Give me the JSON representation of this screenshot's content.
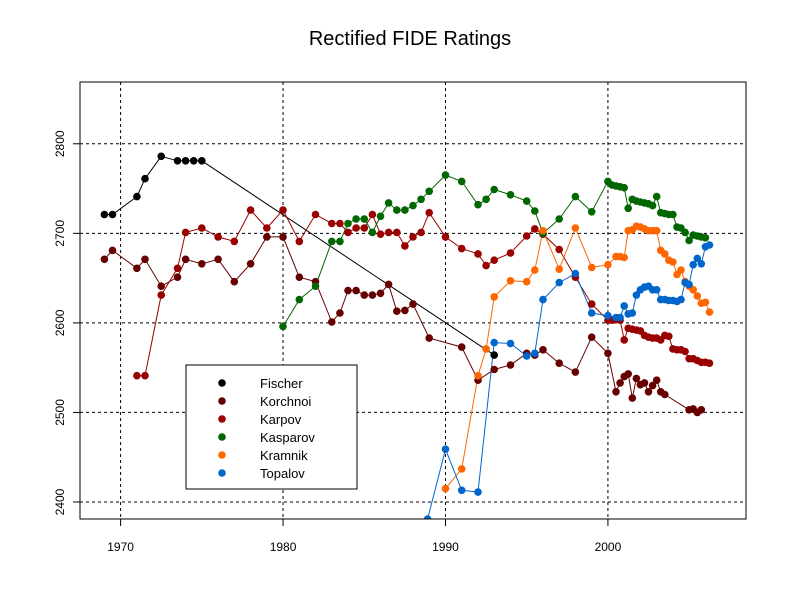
{
  "chart_data": {
    "type": "line",
    "title": "Rectified FIDE Ratings",
    "xlabel": "",
    "ylabel": "",
    "xlim": [
      1967.5,
      2008.5
    ],
    "ylim": [
      2381,
      2869
    ],
    "x_ticks": [
      1970,
      1980,
      1990,
      2000
    ],
    "y_ticks": [
      2400,
      2500,
      2600,
      2700,
      2800
    ],
    "grid": "dashed, at ticks",
    "legend_position": "bottom-left",
    "series": [
      {
        "name": "Fischer",
        "color": "#000000",
        "points": [
          [
            1969.0,
            2721
          ],
          [
            1969.5,
            2721
          ],
          [
            1971.0,
            2741
          ],
          [
            1971.5,
            2761
          ],
          [
            1972.5,
            2786
          ],
          [
            1973.5,
            2781
          ],
          [
            1974.0,
            2781
          ],
          [
            1974.5,
            2781
          ],
          [
            1975.0,
            2781
          ],
          [
            1993.0,
            2564
          ]
        ]
      },
      {
        "name": "Korchnoi",
        "color": "#660000",
        "points": [
          [
            1969.0,
            2671
          ],
          [
            1969.5,
            2681
          ],
          [
            1971.0,
            2661
          ],
          [
            1971.5,
            2671
          ],
          [
            1972.5,
            2641
          ],
          [
            1973.5,
            2651
          ],
          [
            1974.0,
            2671
          ],
          [
            1975.0,
            2666
          ],
          [
            1976.0,
            2671
          ],
          [
            1977.0,
            2646
          ],
          [
            1978.0,
            2666
          ],
          [
            1979.0,
            2696
          ],
          [
            1980.0,
            2696
          ],
          [
            1981.0,
            2651
          ],
          [
            1982.0,
            2646
          ],
          [
            1983.0,
            2601
          ],
          [
            1983.5,
            2611
          ],
          [
            1984.0,
            2636
          ],
          [
            1984.5,
            2636
          ],
          [
            1985.0,
            2631
          ],
          [
            1985.5,
            2631
          ],
          [
            1986.0,
            2633
          ],
          [
            1986.5,
            2643
          ],
          [
            1987.0,
            2613
          ],
          [
            1987.5,
            2614
          ],
          [
            1988.0,
            2621
          ],
          [
            1989.0,
            2583
          ],
          [
            1991.0,
            2573
          ],
          [
            1992.0,
            2536
          ],
          [
            1993.0,
            2548
          ],
          [
            1994.0,
            2553
          ],
          [
            1995.0,
            2566
          ],
          [
            1995.5,
            2564
          ],
          [
            1996.0,
            2570
          ],
          [
            1997.0,
            2555
          ],
          [
            1998.0,
            2545
          ],
          [
            1999.0,
            2584
          ],
          [
            2000.0,
            2566
          ],
          [
            2000.5,
            2523
          ],
          [
            2000.75,
            2533
          ],
          [
            2001.0,
            2540
          ],
          [
            2001.25,
            2543
          ],
          [
            2001.5,
            2516
          ],
          [
            2001.75,
            2538
          ],
          [
            2002.0,
            2531
          ],
          [
            2002.25,
            2533
          ],
          [
            2002.5,
            2523
          ],
          [
            2002.75,
            2530
          ],
          [
            2003.0,
            2536
          ],
          [
            2003.25,
            2523
          ],
          [
            2003.5,
            2520
          ],
          [
            2005.0,
            2503
          ],
          [
            2005.25,
            2504
          ],
          [
            2005.5,
            2500
          ],
          [
            2005.75,
            2503
          ]
        ]
      },
      {
        "name": "Karpov",
        "color": "#990000",
        "points": [
          [
            1971.0,
            2541
          ],
          [
            1971.5,
            2541
          ],
          [
            1972.5,
            2631
          ],
          [
            1973.5,
            2661
          ],
          [
            1974.0,
            2701
          ],
          [
            1975.0,
            2706
          ],
          [
            1976.0,
            2696
          ],
          [
            1977.0,
            2691
          ],
          [
            1978.0,
            2726
          ],
          [
            1979.0,
            2706
          ],
          [
            1980.0,
            2726
          ],
          [
            1981.0,
            2691
          ],
          [
            1982.0,
            2721
          ],
          [
            1983.0,
            2711
          ],
          [
            1983.5,
            2711
          ],
          [
            1984.0,
            2701
          ],
          [
            1984.5,
            2706
          ],
          [
            1985.0,
            2706
          ],
          [
            1985.5,
            2721
          ],
          [
            1986.0,
            2699
          ],
          [
            1986.5,
            2701
          ],
          [
            1987.0,
            2701
          ],
          [
            1987.5,
            2686
          ],
          [
            1988.0,
            2696
          ],
          [
            1988.5,
            2701
          ],
          [
            1989.0,
            2723
          ],
          [
            1990.0,
            2696
          ],
          [
            1991.0,
            2683
          ],
          [
            1992.0,
            2677
          ],
          [
            1992.5,
            2664
          ],
          [
            1993.0,
            2670
          ],
          [
            1994.0,
            2678
          ],
          [
            1995.0,
            2697
          ],
          [
            1995.5,
            2705
          ],
          [
            1996.0,
            2699
          ],
          [
            1997.0,
            2682
          ],
          [
            1998.0,
            2651
          ],
          [
            1999.0,
            2621
          ],
          [
            2000.0,
            2603
          ],
          [
            2000.25,
            2603
          ],
          [
            2000.5,
            2604
          ],
          [
            2000.75,
            2603
          ],
          [
            2001.0,
            2581
          ],
          [
            2001.25,
            2594
          ],
          [
            2001.5,
            2593
          ],
          [
            2001.75,
            2592
          ],
          [
            2002.0,
            2591
          ],
          [
            2002.25,
            2586
          ],
          [
            2002.5,
            2584
          ],
          [
            2002.75,
            2583
          ],
          [
            2003.0,
            2583
          ],
          [
            2003.25,
            2581
          ],
          [
            2003.5,
            2586
          ],
          [
            2003.75,
            2585
          ],
          [
            2004.0,
            2571
          ],
          [
            2004.25,
            2570
          ],
          [
            2004.5,
            2570
          ],
          [
            2004.75,
            2568
          ],
          [
            2005.0,
            2560
          ],
          [
            2005.25,
            2560
          ],
          [
            2005.5,
            2558
          ],
          [
            2005.75,
            2556
          ],
          [
            2006.0,
            2556
          ],
          [
            2006.25,
            2555
          ]
        ]
      },
      {
        "name": "Kasparov",
        "color": "#006600",
        "points": [
          [
            1980.0,
            2596
          ],
          [
            1981.0,
            2626
          ],
          [
            1982.0,
            2641
          ],
          [
            1983.0,
            2691
          ],
          [
            1983.5,
            2691
          ],
          [
            1984.0,
            2711
          ],
          [
            1984.5,
            2716
          ],
          [
            1985.0,
            2716
          ],
          [
            1985.5,
            2701
          ],
          [
            1986.0,
            2719
          ],
          [
            1986.5,
            2734
          ],
          [
            1987.0,
            2726
          ],
          [
            1987.5,
            2726
          ],
          [
            1988.0,
            2731
          ],
          [
            1988.5,
            2738
          ],
          [
            1989.0,
            2747
          ],
          [
            1990.0,
            2765
          ],
          [
            1991.0,
            2758
          ],
          [
            1992.0,
            2732
          ],
          [
            1992.5,
            2738
          ],
          [
            1993.0,
            2749
          ],
          [
            1994.0,
            2743
          ],
          [
            1995.0,
            2736
          ],
          [
            1995.5,
            2725
          ],
          [
            1996.0,
            2700
          ],
          [
            1997.0,
            2716
          ],
          [
            1998.0,
            2741
          ],
          [
            1999.0,
            2724
          ],
          [
            2000.0,
            2758
          ],
          [
            2000.25,
            2754
          ],
          [
            2000.5,
            2753
          ],
          [
            2000.75,
            2752
          ],
          [
            2001.0,
            2751
          ],
          [
            2001.25,
            2728
          ],
          [
            2001.5,
            2738
          ],
          [
            2001.75,
            2736
          ],
          [
            2002.0,
            2735
          ],
          [
            2002.25,
            2734
          ],
          [
            2002.5,
            2733
          ],
          [
            2002.75,
            2731
          ],
          [
            2003.0,
            2741
          ],
          [
            2003.25,
            2723
          ],
          [
            2003.5,
            2722
          ],
          [
            2003.75,
            2721
          ],
          [
            2004.0,
            2721
          ],
          [
            2004.25,
            2707
          ],
          [
            2004.5,
            2706
          ],
          [
            2004.75,
            2701
          ],
          [
            2005.0,
            2692
          ],
          [
            2005.25,
            2698
          ],
          [
            2005.5,
            2697
          ],
          [
            2005.75,
            2696
          ],
          [
            2006.0,
            2695
          ]
        ]
      },
      {
        "name": "Kramnik",
        "color": "#ff6600",
        "points": [
          [
            1990.0,
            2415
          ],
          [
            1991.0,
            2437
          ],
          [
            1992.0,
            2541
          ],
          [
            1992.5,
            2571
          ],
          [
            1993.0,
            2629
          ],
          [
            1994.0,
            2647
          ],
          [
            1995.0,
            2646
          ],
          [
            1995.5,
            2659
          ],
          [
            1996.0,
            2703
          ],
          [
            1997.0,
            2660
          ],
          [
            1998.0,
            2706
          ],
          [
            1999.0,
            2662
          ],
          [
            2000.0,
            2665
          ],
          [
            2000.5,
            2674
          ],
          [
            2000.75,
            2674
          ],
          [
            2001.0,
            2673
          ],
          [
            2001.25,
            2703
          ],
          [
            2001.5,
            2704
          ],
          [
            2001.75,
            2708
          ],
          [
            2002.0,
            2707
          ],
          [
            2002.25,
            2705
          ],
          [
            2002.5,
            2703
          ],
          [
            2002.75,
            2703
          ],
          [
            2003.0,
            2703
          ],
          [
            2003.25,
            2681
          ],
          [
            2003.5,
            2677
          ],
          [
            2003.75,
            2670
          ],
          [
            2004.0,
            2668
          ],
          [
            2004.25,
            2654
          ],
          [
            2004.5,
            2659
          ],
          [
            2004.75,
            2646
          ],
          [
            2005.0,
            2641
          ],
          [
            2005.25,
            2637
          ],
          [
            2005.5,
            2630
          ],
          [
            2005.75,
            2622
          ],
          [
            2006.0,
            2623
          ],
          [
            2006.25,
            2612
          ]
        ]
      },
      {
        "name": "Topalov",
        "color": "#0066cc",
        "points": [
          [
            1988.9,
            2381
          ],
          [
            1990.0,
            2459
          ],
          [
            1991.0,
            2413
          ],
          [
            1992.0,
            2411
          ],
          [
            1993.0,
            2578
          ],
          [
            1994.0,
            2577
          ],
          [
            1995.0,
            2563
          ],
          [
            1995.5,
            2566
          ],
          [
            1996.0,
            2626
          ],
          [
            1997.0,
            2645
          ],
          [
            1998.0,
            2655
          ],
          [
            1999.0,
            2611
          ],
          [
            2000.0,
            2608
          ],
          [
            2000.5,
            2606
          ],
          [
            2000.75,
            2606
          ],
          [
            2001.0,
            2619
          ],
          [
            2001.25,
            2610
          ],
          [
            2001.5,
            2611
          ],
          [
            2001.75,
            2631
          ],
          [
            2002.0,
            2637
          ],
          [
            2002.25,
            2640
          ],
          [
            2002.5,
            2641
          ],
          [
            2002.75,
            2637
          ],
          [
            2003.0,
            2637
          ],
          [
            2003.25,
            2626
          ],
          [
            2003.5,
            2626
          ],
          [
            2003.75,
            2625
          ],
          [
            2004.0,
            2625
          ],
          [
            2004.25,
            2624
          ],
          [
            2004.5,
            2626
          ],
          [
            2004.75,
            2645
          ],
          [
            2005.0,
            2643
          ],
          [
            2005.25,
            2665
          ],
          [
            2005.5,
            2672
          ],
          [
            2005.75,
            2666
          ],
          [
            2006.0,
            2685
          ],
          [
            2006.25,
            2687
          ]
        ]
      }
    ]
  }
}
